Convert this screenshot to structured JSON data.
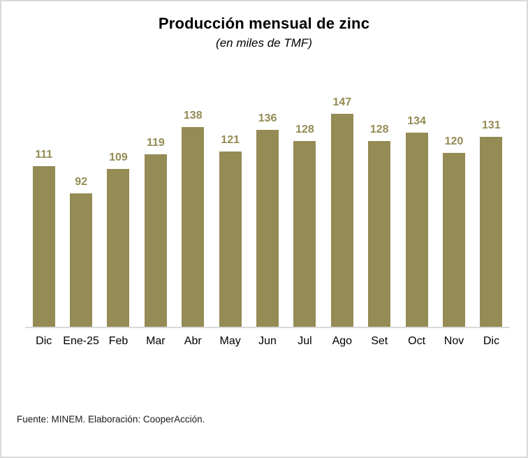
{
  "frame": {
    "background": "#FFFFFF",
    "border_color": "#D9D9D9"
  },
  "chart_data": {
    "type": "bar",
    "title": "Producción mensual de zinc",
    "subtitle": "(en miles de TMF)",
    "categories": [
      "Dic",
      "Ene-25",
      "Feb",
      "Mar",
      "Abr",
      "May",
      "Jun",
      "Jul",
      "Ago",
      "Set",
      "Oct",
      "Nov",
      "Dic"
    ],
    "values": [
      111,
      92,
      109,
      119,
      138,
      121,
      136,
      128,
      147,
      128,
      134,
      120,
      131
    ],
    "bar_color": "#948B55",
    "data_label_color": "#948B55",
    "axis_line_color": "#D9D9D9",
    "data_labels": true,
    "grid": false,
    "legend": false,
    "y_axis_visible": false,
    "ylim": [
      0,
      147
    ]
  },
  "footer": {
    "source_note": "Fuente: MINEM. Elaboración: CooperAcción."
  }
}
